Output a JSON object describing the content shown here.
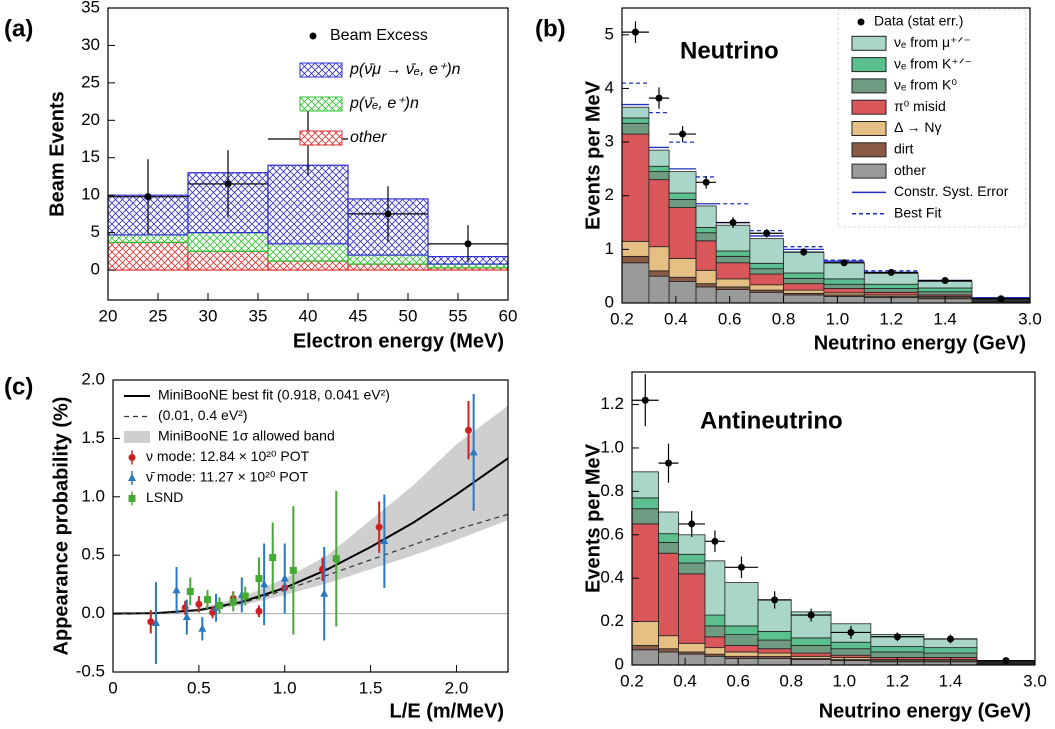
{
  "chart_data": [
    {
      "type": "histogram",
      "panel_label": "(a)",
      "xlabel": "Electron energy (MeV)",
      "ylabel": "Beam Events",
      "bins": [
        20,
        28,
        36,
        44,
        52,
        60
      ],
      "xlim": [
        20,
        60
      ],
      "xticks": [
        20,
        25,
        30,
        35,
        40,
        45,
        50,
        55,
        60
      ],
      "ylim": [
        -4,
        35
      ],
      "yticks": [
        0,
        5,
        10,
        15,
        20,
        25,
        30,
        35
      ],
      "series": [
        {
          "name": "other",
          "color": "#e03030",
          "hatch": true,
          "values": [
            3.7,
            2.5,
            1.2,
            0.8,
            0.3
          ]
        },
        {
          "name": "p(ν̄ₑ, e⁺)n",
          "color": "#30c030",
          "hatch": true,
          "values": [
            1.0,
            2.5,
            2.3,
            1.2,
            0.5
          ]
        },
        {
          "name": "p(ν̄μ → ν̄ₑ, e⁺)n",
          "color": "#3030d0",
          "hatch": true,
          "values": [
            5.3,
            8.0,
            10.5,
            7.5,
            1.0
          ]
        }
      ],
      "data": {
        "name": "Beam Excess",
        "color": "#000000",
        "values": [
          9.8,
          11.5,
          17.5,
          7.5,
          3.5
        ],
        "errors": [
          5.0,
          4.5,
          4.8,
          3.7,
          2.5
        ]
      }
    },
    {
      "type": "histogram",
      "panel_label": "(b)",
      "annotation": "Neutrino",
      "xlabel": "Neutrino energy (GeV)",
      "ylabel": "Events per MeV",
      "bins": [
        0.2,
        0.3,
        0.375,
        0.475,
        0.55,
        0.675,
        0.8,
        0.95,
        1.1,
        1.3,
        1.5,
        3.0
      ],
      "xlim": [
        0.2,
        3.0
      ],
      "xticks": [
        0.2,
        0.4,
        0.6,
        0.8,
        {
          "value": 1,
          "label": "1.0"
        },
        1.2,
        1.4,
        {
          "value": 3,
          "label": "3.0"
        }
      ],
      "ylim": [
        0,
        5.5
      ],
      "yticks": [
        0,
        1,
        2,
        3,
        4,
        5
      ],
      "series": [
        {
          "name": "other",
          "color": "#9a9a9a",
          "values": [
            0.75,
            0.5,
            0.4,
            0.3,
            0.25,
            0.2,
            0.15,
            0.12,
            0.1,
            0.08,
            0.02
          ]
        },
        {
          "name": "dirt",
          "color": "#8a5a44",
          "values": [
            0.12,
            0.1,
            0.08,
            0.06,
            0.05,
            0.04,
            0.03,
            0.03,
            0.02,
            0.02,
            0.01
          ]
        },
        {
          "name": "Δ → Nγ",
          "color": "#e6bf84",
          "values": [
            0.28,
            0.45,
            0.35,
            0.25,
            0.15,
            0.1,
            0.06,
            0.04,
            0.03,
            0.02,
            0.005
          ]
        },
        {
          "name": "π⁰ misid",
          "color": "#d9575a",
          "values": [
            2.0,
            1.25,
            0.95,
            0.55,
            0.3,
            0.2,
            0.12,
            0.08,
            0.05,
            0.03,
            0.01
          ]
        },
        {
          "name": "νₑ from K⁰",
          "color": "#6f9c80",
          "values": [
            0.2,
            0.15,
            0.15,
            0.15,
            0.12,
            0.1,
            0.1,
            0.08,
            0.07,
            0.06,
            0.02
          ]
        },
        {
          "name": "νₑ from K⁺ᐟ⁻",
          "color": "#5cbf8e",
          "values": [
            0.1,
            0.1,
            0.12,
            0.1,
            0.1,
            0.1,
            0.1,
            0.1,
            0.08,
            0.07,
            0.02
          ]
        },
        {
          "name": "νₑ from μ⁺ᐟ⁻",
          "color": "#a9d6c8",
          "values": [
            0.2,
            0.3,
            0.4,
            0.4,
            0.48,
            0.46,
            0.39,
            0.3,
            0.2,
            0.12,
            0.015
          ]
        }
      ],
      "lines": [
        {
          "name": "Constr. Syst. Error",
          "color": "#2030c0",
          "dashed": false,
          "values": [
            3.7,
            2.9,
            2.5,
            1.85,
            1.5,
            1.25,
            1.0,
            0.78,
            0.57,
            0.42,
            0.1
          ]
        },
        {
          "name": "Best Fit",
          "color": "#2030c0",
          "dashed": true,
          "values": [
            4.1,
            3.55,
            3.0,
            2.35,
            1.85,
            1.35,
            1.05,
            0.8,
            0.6,
            0.42,
            0.1
          ]
        }
      ],
      "data": {
        "name": "Data (stat err.)",
        "color": "#000000",
        "values": [
          5.05,
          3.82,
          3.15,
          2.25,
          1.5,
          1.3,
          0.95,
          0.75,
          0.57,
          0.42,
          0.08
        ],
        "errors": [
          0.2,
          0.2,
          0.15,
          0.12,
          0.1,
          0.08,
          0.07,
          0.05,
          0.04,
          0.03,
          0.01
        ]
      }
    },
    {
      "type": "line",
      "panel_label": "(c)",
      "xlabel": "L/E (m/MeV)",
      "ylabel": "Appearance probability (%)",
      "xlim": [
        0,
        2.3
      ],
      "xticks": [
        0,
        0.5,
        {
          "value": 1,
          "label": "1.0"
        },
        1.5,
        {
          "value": 2,
          "label": "2.0"
        }
      ],
      "ylim": [
        -0.5,
        2.0
      ],
      "yticks": [
        -0.5,
        {
          "value": 0,
          "label": "0.0"
        },
        0.5,
        {
          "value": 1,
          "label": "1.0"
        },
        1.5,
        {
          "value": 2,
          "label": "2.0"
        }
      ],
      "x": [
        0,
        0.25,
        0.5,
        0.75,
        1.0,
        1.25,
        1.5,
        1.75,
        2.0,
        2.3
      ],
      "series": [
        {
          "name": "MiniBooNE best fit (0.918, 0.041 eV²)",
          "color": "#000000",
          "dashed": false,
          "values": [
            0,
            0.004,
            0.03,
            0.1,
            0.22,
            0.38,
            0.57,
            0.78,
            1.02,
            1.33
          ]
        },
        {
          "name": "(0.01, 0.4 eV²)",
          "color": "#333333",
          "dashed": true,
          "values": [
            0,
            0.003,
            0.025,
            0.09,
            0.2,
            0.33,
            0.46,
            0.59,
            0.72,
            0.85
          ]
        }
      ],
      "band": {
        "name": "MiniBooNE 1σ allowed band",
        "color": "#cfcfcf",
        "lower": [
          0,
          0.003,
          0.02,
          0.07,
          0.16,
          0.26,
          0.38,
          0.5,
          0.63,
          0.8
        ],
        "upper": [
          0,
          0.006,
          0.045,
          0.14,
          0.3,
          0.5,
          0.8,
          1.1,
          1.45,
          1.78
        ]
      },
      "points": [
        {
          "name": "ν mode: 12.84 × 10²⁰ POT",
          "color": "#cc2222",
          "marker": "circle",
          "x": [
            0.22,
            0.42,
            0.5,
            0.58,
            0.7,
            0.85,
            1.0,
            1.22,
            1.55,
            2.07
          ],
          "values": [
            -0.07,
            0.05,
            0.08,
            0.01,
            0.13,
            0.02,
            0.22,
            0.38,
            0.74,
            1.57
          ],
          "errors": [
            0.1,
            0.06,
            0.07,
            0.05,
            0.06,
            0.05,
            0.08,
            0.1,
            0.22,
            0.25
          ]
        },
        {
          "name": "ν̄ mode: 11.27 × 10²⁰ POT",
          "color": "#2a78c0",
          "marker": "triangle",
          "x": [
            0.25,
            0.37,
            0.43,
            0.52,
            0.6,
            0.75,
            0.88,
            1.0,
            1.23,
            1.58,
            2.1
          ],
          "values": [
            -0.08,
            0.2,
            -0.03,
            -0.13,
            0.05,
            0.16,
            0.25,
            0.3,
            0.17,
            0.62,
            1.38
          ],
          "errors": [
            0.35,
            0.2,
            0.15,
            0.1,
            0.12,
            0.15,
            0.35,
            0.3,
            0.4,
            0.4,
            0.5
          ]
        },
        {
          "name": "LSND",
          "color": "#44aa33",
          "marker": "square",
          "x": [
            0.45,
            0.55,
            0.62,
            0.7,
            0.77,
            0.85,
            0.93,
            1.05,
            1.3
          ],
          "values": [
            0.19,
            0.12,
            0.07,
            0.1,
            0.15,
            0.3,
            0.48,
            0.37,
            0.47
          ],
          "errors": [
            0.12,
            0.08,
            0.07,
            0.08,
            0.08,
            0.18,
            0.3,
            0.55,
            0.58
          ]
        }
      ]
    },
    {
      "type": "histogram",
      "annotation": "Antineutrino",
      "xlabel": "Neutrino energy (GeV)",
      "ylabel": "Events per MeV",
      "bins": [
        0.2,
        0.3,
        0.375,
        0.475,
        0.55,
        0.675,
        0.8,
        0.95,
        1.1,
        1.3,
        1.5,
        3.0
      ],
      "xlim": [
        0.2,
        3.0
      ],
      "xticks": [
        0.2,
        0.4,
        0.6,
        0.8,
        {
          "value": 1,
          "label": "1.0"
        },
        1.2,
        1.4,
        {
          "value": 3,
          "label": "3.0"
        }
      ],
      "ylim": [
        0,
        1.35
      ],
      "yticks": [
        0,
        0.2,
        0.4,
        0.6,
        0.8,
        {
          "value": 1,
          "label": "1.0"
        },
        1.2
      ],
      "legend": false,
      "series": [
        {
          "name": "other",
          "color": "#9a9a9a",
          "values": [
            0.07,
            0.06,
            0.05,
            0.04,
            0.03,
            0.03,
            0.025,
            0.02,
            0.015,
            0.015,
            0.005
          ]
        },
        {
          "name": "dirt",
          "color": "#8a5a44",
          "values": [
            0.02,
            0.015,
            0.01,
            0.01,
            0.01,
            0.01,
            0.005,
            0.005,
            0.005,
            0.005,
            0.002
          ]
        },
        {
          "name": "Δ → Nγ",
          "color": "#e6bf84",
          "values": [
            0.11,
            0.06,
            0.04,
            0.03,
            0.02,
            0.015,
            0.01,
            0.01,
            0.005,
            0.005,
            0.002
          ]
        },
        {
          "name": "π⁰ misid",
          "color": "#d9575a",
          "values": [
            0.45,
            0.38,
            0.32,
            0.05,
            0.03,
            0.02,
            0.015,
            0.01,
            0.01,
            0.01,
            0.002
          ]
        },
        {
          "name": "νₑ from K⁰",
          "color": "#6f9c80",
          "values": [
            0.07,
            0.05,
            0.05,
            0.05,
            0.05,
            0.04,
            0.035,
            0.03,
            0.025,
            0.02,
            0.004
          ]
        },
        {
          "name": "νₑ from K⁺ᐟ⁻",
          "color": "#5cbf8e",
          "values": [
            0.05,
            0.04,
            0.04,
            0.05,
            0.04,
            0.04,
            0.035,
            0.03,
            0.025,
            0.025,
            0.003
          ]
        },
        {
          "name": "νₑ from μ⁺ᐟ⁻",
          "color": "#a9d6c8",
          "values": [
            0.12,
            0.1,
            0.09,
            0.25,
            0.2,
            0.145,
            0.12,
            0.085,
            0.055,
            0.04,
            0.002
          ]
        }
      ],
      "data": {
        "name": "Data",
        "color": "#000000",
        "values": [
          1.22,
          0.93,
          0.65,
          0.57,
          0.45,
          0.3,
          0.23,
          0.15,
          0.13,
          0.12,
          0.02
        ],
        "errors": [
          0.12,
          0.09,
          0.06,
          0.05,
          0.05,
          0.04,
          0.03,
          0.03,
          0.02,
          0.02,
          0.01
        ]
      }
    }
  ]
}
